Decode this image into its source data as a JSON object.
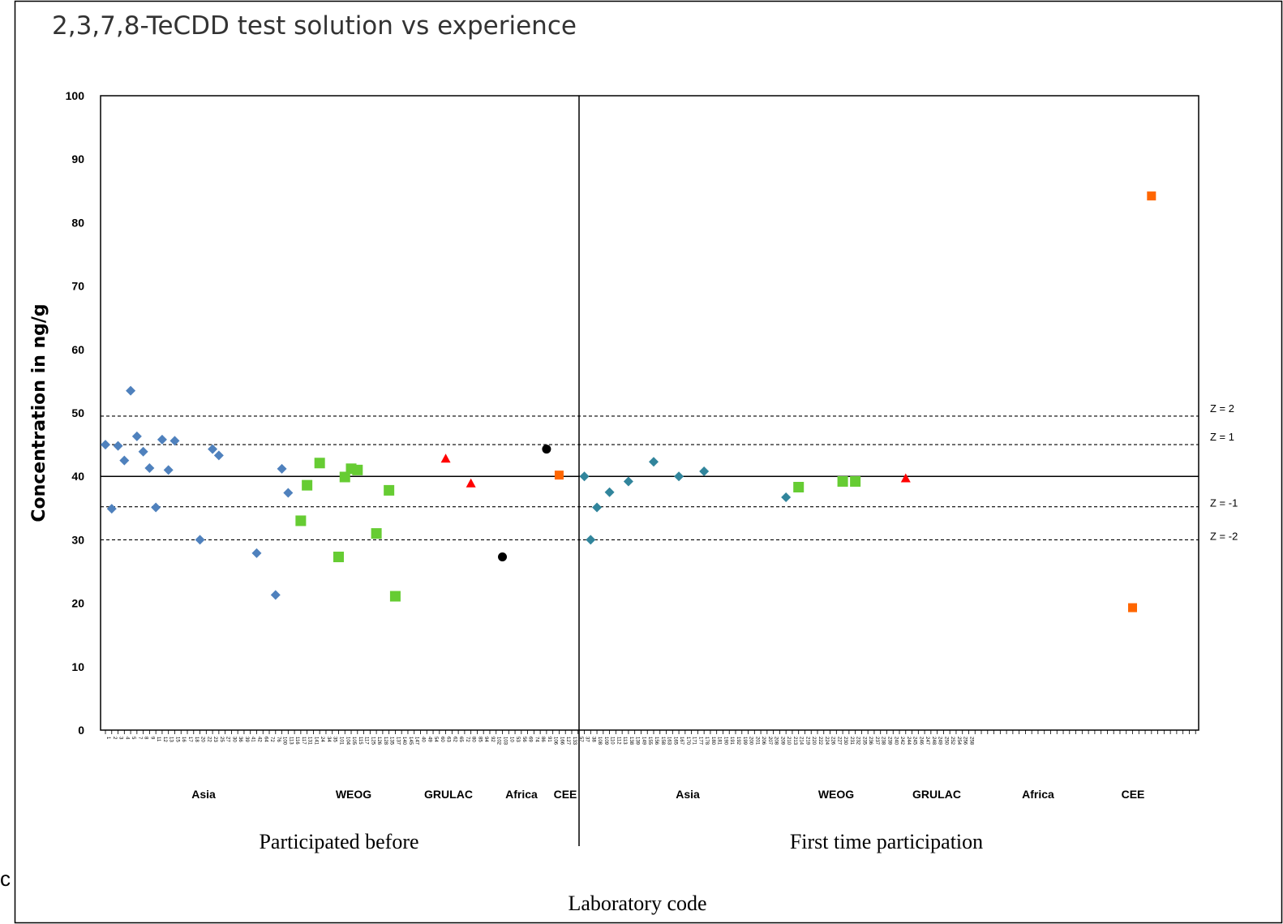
{
  "chart_data": {
    "type": "scatter",
    "title": "2,3,7,8-TeCDD test solution vs experience",
    "ylabel": "Concentration in ng/g",
    "xlabel": "Laboratory code",
    "ylim": [
      0,
      100
    ],
    "yticks": [
      0,
      10,
      20,
      30,
      40,
      50,
      60,
      70,
      80,
      90,
      100
    ],
    "grid": false,
    "groups": [
      {
        "label": "Participated before",
        "regions": [
          "Asia",
          "WEOG",
          "GRULAC",
          "Africa",
          "CEE"
        ]
      },
      {
        "label": "First time participation",
        "regions": [
          "Asia",
          "WEOG",
          "GRULAC",
          "Africa",
          "CEE"
        ]
      }
    ],
    "lab_codes": [
      "1",
      "2",
      "3",
      "4",
      "5",
      "7",
      "8",
      "9",
      "11",
      "12",
      "13",
      "15",
      "16",
      "17",
      "18",
      "20",
      "22",
      "23",
      "25",
      "27",
      "30",
      "36",
      "39",
      "41",
      "42",
      "64",
      "72",
      "76",
      "100",
      "113",
      "116",
      "117",
      "131",
      "141",
      "24",
      "34",
      "35",
      "101",
      "104",
      "105",
      "115",
      "117",
      "125",
      "126",
      "128",
      "135",
      "137",
      "140",
      "145",
      "147",
      "40",
      "49",
      "54",
      "60",
      "63",
      "62",
      "65",
      "72",
      "80",
      "85",
      "94",
      "92",
      "102",
      "103",
      "10",
      "53",
      "56",
      "69",
      "74",
      "86",
      "91",
      "106",
      "166",
      "127",
      "133",
      "57",
      "37",
      "38",
      "108",
      "109",
      "110",
      "112",
      "113",
      "138",
      "139",
      "149",
      "155",
      "156",
      "158",
      "163",
      "165",
      "167",
      "170",
      "171",
      "177",
      "178",
      "180",
      "181",
      "190",
      "191",
      "192",
      "199",
      "200",
      "201",
      "206",
      "207",
      "208",
      "209",
      "210",
      "213",
      "214",
      "219",
      "220",
      "222",
      "224",
      "226",
      "227",
      "230",
      "231",
      "232",
      "235",
      "236",
      "237",
      "238",
      "239",
      "240",
      "242",
      "244",
      "245",
      "246",
      "247",
      "248",
      "249",
      "250",
      "252",
      "254",
      "256",
      "258"
    ],
    "reference_lines": [
      {
        "label": "Z = 2",
        "value": 49.5,
        "style": "dashed"
      },
      {
        "label": "Z = 1",
        "value": 45,
        "style": "dashed"
      },
      {
        "label": "",
        "value": 40,
        "style": "solid"
      },
      {
        "label": "Z = -1",
        "value": 35.2,
        "style": "dashed"
      },
      {
        "label": "Z = -2",
        "value": 30,
        "style": "dashed"
      }
    ],
    "series": [
      {
        "name": "Asia (participated before)",
        "marker": "diamond",
        "color": "#4F81BD",
        "points": [
          {
            "x": 1,
            "y": 45.0
          },
          {
            "x": 2,
            "y": 34.9
          },
          {
            "x": 3,
            "y": 44.8
          },
          {
            "x": 4,
            "y": 42.5
          },
          {
            "x": 5,
            "y": 53.5
          },
          {
            "x": 6,
            "y": 46.3
          },
          {
            "x": 7,
            "y": 43.9
          },
          {
            "x": 8,
            "y": 41.3
          },
          {
            "x": 9,
            "y": 35.1
          },
          {
            "x": 10,
            "y": 45.8
          },
          {
            "x": 11,
            "y": 41.0
          },
          {
            "x": 12,
            "y": 45.6
          },
          {
            "x": 16,
            "y": 30.0
          },
          {
            "x": 18,
            "y": 44.3
          },
          {
            "x": 19,
            "y": 43.3
          },
          {
            "x": 25,
            "y": 27.9
          },
          {
            "x": 28,
            "y": 21.3
          },
          {
            "x": 29,
            "y": 41.2
          },
          {
            "x": 30,
            "y": 37.4
          }
        ]
      },
      {
        "name": "WEOG (participated before)",
        "marker": "square",
        "color": "#66CC33",
        "points": [
          {
            "x": 32,
            "y": 33.0
          },
          {
            "x": 33,
            "y": 38.6
          },
          {
            "x": 35,
            "y": 42.1
          },
          {
            "x": 38,
            "y": 27.3
          },
          {
            "x": 39,
            "y": 39.9
          },
          {
            "x": 40,
            "y": 41.2
          },
          {
            "x": 41,
            "y": 41.0
          },
          {
            "x": 44,
            "y": 31.0
          },
          {
            "x": 46,
            "y": 37.8
          },
          {
            "x": 47,
            "y": 21.1
          }
        ]
      },
      {
        "name": "GRULAC (participated before)",
        "marker": "triangle",
        "color": "#FF0000",
        "points": [
          {
            "x": 55,
            "y": 42.8
          },
          {
            "x": 59,
            "y": 38.9
          }
        ]
      },
      {
        "name": "Africa (participated before)",
        "marker": "circle",
        "color": "#000000",
        "points": [
          {
            "x": 64,
            "y": 27.3
          },
          {
            "x": 71,
            "y": 44.3
          }
        ]
      },
      {
        "name": "CEE (participated before)",
        "marker": "square",
        "color": "#FF6600",
        "points": [
          {
            "x": 73,
            "y": 40.2
          }
        ]
      },
      {
        "name": "Asia (first time)",
        "marker": "diamond",
        "color": "#31859C",
        "points": [
          {
            "x": 77,
            "y": 40.0
          },
          {
            "x": 78,
            "y": 30.0
          },
          {
            "x": 79,
            "y": 35.1
          },
          {
            "x": 81,
            "y": 37.5
          },
          {
            "x": 84,
            "y": 39.2
          },
          {
            "x": 88,
            "y": 42.3
          },
          {
            "x": 92,
            "y": 40.0
          },
          {
            "x": 96,
            "y": 40.8
          },
          {
            "x": 109,
            "y": 36.7
          }
        ]
      },
      {
        "name": "WEOG (first time)",
        "marker": "square",
        "color": "#66CC33",
        "points": [
          {
            "x": 111,
            "y": 38.3
          },
          {
            "x": 118,
            "y": 39.2
          },
          {
            "x": 120,
            "y": 39.2
          }
        ]
      },
      {
        "name": "GRULAC (first time)",
        "marker": "triangle",
        "color": "#FF0000",
        "points": [
          {
            "x": 128,
            "y": 39.7
          }
        ]
      },
      {
        "name": "CEE (first time)",
        "marker": "square",
        "color": "#FF6600",
        "points": [
          {
            "x": 164,
            "y": 19.3
          },
          {
            "x": 167,
            "y": 84.2
          }
        ]
      }
    ]
  },
  "stray_text": "c"
}
